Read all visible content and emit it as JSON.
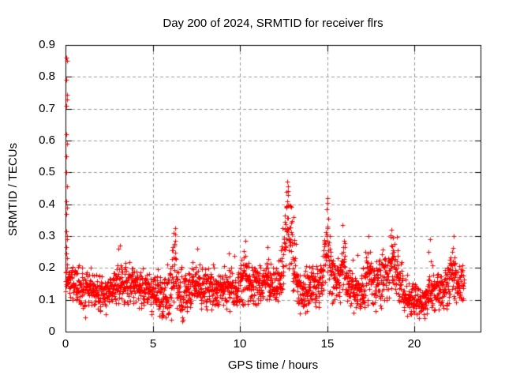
{
  "chart_data": {
    "type": "scatter",
    "title": "Day 200 of 2024, SRMTID for receiver flrs",
    "xlabel": "GPS time / hours",
    "ylabel": "SRMTID / TECUs",
    "xlim": [
      0,
      23.8
    ],
    "ylim": [
      0,
      0.9
    ],
    "xticks": {
      "values": [
        0,
        5,
        10,
        15,
        20
      ],
      "labels": [
        "0",
        "5",
        "10",
        "15",
        "20"
      ]
    },
    "yticks": {
      "values": [
        0,
        0.1,
        0.2,
        0.3,
        0.4,
        0.5,
        0.6,
        0.7,
        0.8,
        0.9
      ],
      "labels": [
        "0",
        "0.1",
        "0.2",
        "0.3",
        "0.4",
        "0.5",
        "0.6",
        "0.7",
        "0.8",
        "0.9"
      ]
    },
    "grid": true,
    "legend_position": "none",
    "marker": {
      "shape": "plus",
      "size": 7,
      "color": "#ff0000"
    },
    "colors": {
      "axis": "#000000",
      "grid": "#999999",
      "background": "#ffffff",
      "marker": "#ff0000"
    },
    "series": [
      {
        "name": "SRMTID",
        "representation": "procedural-envelope",
        "envelope_control_points": [
          [
            0.0,
            0.17,
            0.06
          ],
          [
            0.4,
            0.16,
            0.06
          ],
          [
            0.9,
            0.14,
            0.06
          ],
          [
            1.5,
            0.13,
            0.05
          ],
          [
            2.1,
            0.12,
            0.055
          ],
          [
            2.6,
            0.13,
            0.055
          ],
          [
            3.1,
            0.16,
            0.08
          ],
          [
            3.5,
            0.14,
            0.06
          ],
          [
            3.8,
            0.15,
            0.07
          ],
          [
            4.2,
            0.14,
            0.06
          ],
          [
            4.7,
            0.13,
            0.06
          ],
          [
            5.2,
            0.12,
            0.07
          ],
          [
            5.65,
            0.1,
            0.08
          ],
          [
            6.0,
            0.12,
            0.09
          ],
          [
            6.25,
            0.21,
            0.11
          ],
          [
            6.45,
            0.13,
            0.07
          ],
          [
            6.7,
            0.11,
            0.08
          ],
          [
            7.0,
            0.13,
            0.06
          ],
          [
            7.5,
            0.15,
            0.07
          ],
          [
            8.0,
            0.13,
            0.06
          ],
          [
            8.6,
            0.13,
            0.06
          ],
          [
            9.1,
            0.14,
            0.06
          ],
          [
            9.5,
            0.14,
            0.07
          ],
          [
            9.8,
            0.13,
            0.06
          ],
          [
            10.25,
            0.17,
            0.1
          ],
          [
            10.6,
            0.14,
            0.07
          ],
          [
            11.0,
            0.14,
            0.07
          ],
          [
            11.35,
            0.16,
            0.08
          ],
          [
            11.7,
            0.15,
            0.08
          ],
          [
            12.0,
            0.14,
            0.07
          ],
          [
            12.3,
            0.17,
            0.08
          ],
          [
            12.55,
            0.28,
            0.14
          ],
          [
            12.75,
            0.33,
            0.14
          ],
          [
            12.95,
            0.26,
            0.13
          ],
          [
            13.1,
            0.22,
            0.13
          ],
          [
            13.35,
            0.13,
            0.08
          ],
          [
            13.6,
            0.11,
            0.07
          ],
          [
            13.9,
            0.14,
            0.08
          ],
          [
            14.2,
            0.15,
            0.08
          ],
          [
            14.55,
            0.14,
            0.07
          ],
          [
            14.8,
            0.2,
            0.11
          ],
          [
            15.0,
            0.28,
            0.14
          ],
          [
            15.2,
            0.2,
            0.11
          ],
          [
            15.45,
            0.15,
            0.08
          ],
          [
            15.7,
            0.15,
            0.08
          ],
          [
            15.9,
            0.22,
            0.11
          ],
          [
            16.15,
            0.15,
            0.08
          ],
          [
            16.5,
            0.13,
            0.06
          ],
          [
            16.9,
            0.12,
            0.06
          ],
          [
            17.35,
            0.19,
            0.1
          ],
          [
            17.7,
            0.14,
            0.07
          ],
          [
            18.05,
            0.17,
            0.09
          ],
          [
            18.4,
            0.16,
            0.08
          ],
          [
            18.75,
            0.22,
            0.1
          ],
          [
            19.05,
            0.17,
            0.08
          ],
          [
            19.4,
            0.12,
            0.05
          ],
          [
            19.8,
            0.1,
            0.045
          ],
          [
            20.3,
            0.09,
            0.045
          ],
          [
            20.7,
            0.1,
            0.05
          ],
          [
            20.95,
            0.12,
            0.07
          ],
          [
            21.2,
            0.13,
            0.07
          ],
          [
            21.6,
            0.13,
            0.06
          ],
          [
            21.95,
            0.14,
            0.08
          ],
          [
            22.25,
            0.19,
            0.11
          ],
          [
            22.5,
            0.14,
            0.07
          ],
          [
            22.85,
            0.16,
            0.09
          ]
        ],
        "startup_outliers": [
          [
            0.05,
            0.86
          ],
          [
            0.08,
            0.85
          ],
          [
            0.05,
            0.79
          ],
          [
            0.07,
            0.745
          ],
          [
            0.1,
            0.73
          ],
          [
            0.06,
            0.71
          ],
          [
            0.05,
            0.62
          ],
          [
            0.08,
            0.59
          ],
          [
            0.06,
            0.55
          ],
          [
            0.05,
            0.5
          ],
          [
            0.07,
            0.455
          ],
          [
            0.05,
            0.41
          ],
          [
            0.09,
            0.39
          ],
          [
            0.06,
            0.37
          ],
          [
            0.05,
            0.315
          ],
          [
            0.08,
            0.3
          ],
          [
            0.1,
            0.29
          ],
          [
            0.06,
            0.265
          ],
          [
            0.04,
            0.245
          ],
          [
            0.11,
            0.23
          ]
        ],
        "peak_points": [
          [
            12.72,
            0.47
          ],
          [
            12.76,
            0.455
          ],
          [
            12.68,
            0.44
          ],
          [
            12.78,
            0.43
          ],
          [
            13.08,
            0.36
          ],
          [
            15.0,
            0.42
          ],
          [
            15.03,
            0.405
          ],
          [
            15.9,
            0.335
          ],
          [
            18.7,
            0.32
          ],
          [
            17.38,
            0.3
          ],
          [
            22.25,
            0.3
          ],
          [
            6.28,
            0.325
          ],
          [
            6.22,
            0.31
          ],
          [
            10.3,
            0.285
          ],
          [
            11.6,
            0.265
          ],
          [
            3.1,
            0.27
          ],
          [
            3.05,
            0.26
          ],
          [
            7.55,
            0.26
          ],
          [
            9.35,
            0.245
          ],
          [
            16.75,
            0.24
          ],
          [
            20.9,
            0.29
          ],
          [
            20.82,
            0.25
          ],
          [
            20.95,
            0.22
          ]
        ],
        "gen": {
          "seed": 20240200,
          "t_start": 0.0,
          "t_end": 22.85,
          "dt": 0.01,
          "outlier_prob": 0.03,
          "outlier_scale": 0.07,
          "dip_prob": 0.015,
          "dip_scale": 0.05,
          "wiggle_amp": 0.018,
          "wiggle_freq": 34,
          "y_min": 0.012
        }
      }
    ]
  }
}
